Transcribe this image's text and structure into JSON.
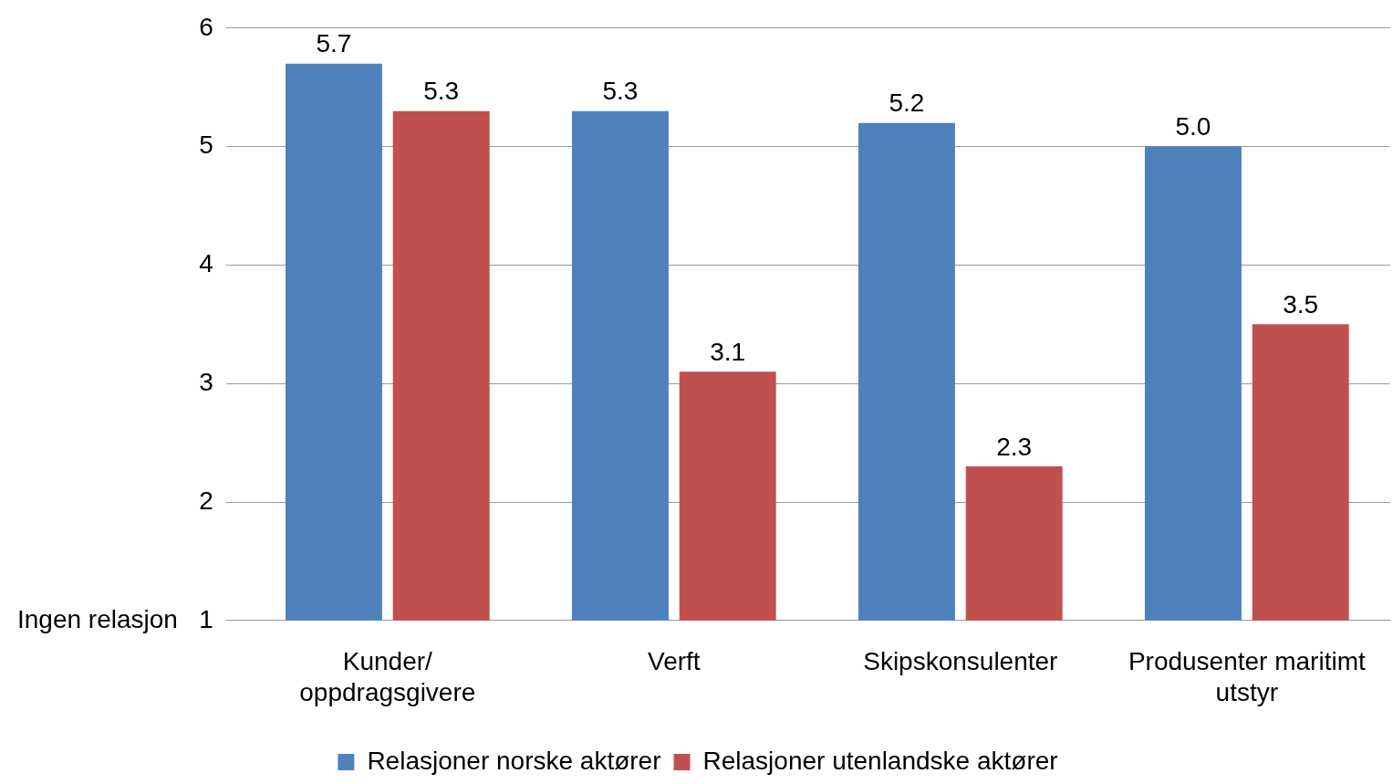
{
  "chart_data": {
    "type": "bar",
    "categories": [
      "Kunder/\noppdragsgivere",
      "Verft",
      "Skipskonsulenter",
      "Produsenter maritimt\nutstyr"
    ],
    "series": [
      {
        "name": "Relasjoner norske aktører",
        "color": "#4f81bd",
        "values": [
          5.7,
          5.3,
          5.2,
          5.0
        ],
        "value_labels": [
          "5.7",
          "5.3",
          "5.2",
          "5.0"
        ]
      },
      {
        "name": "Relasjoner utenlandske aktører",
        "color": "#c0504d",
        "values": [
          5.3,
          3.1,
          2.3,
          3.5
        ],
        "value_labels": [
          "5.3",
          "3.1",
          "2.3",
          "3.5"
        ]
      }
    ],
    "ylim": [
      1,
      6
    ],
    "yticks": [
      {
        "value": 1,
        "label": "Ingen relasjon   1"
      },
      2,
      3,
      4,
      5,
      6
    ],
    "grid": "y",
    "legend": "bottom"
  }
}
